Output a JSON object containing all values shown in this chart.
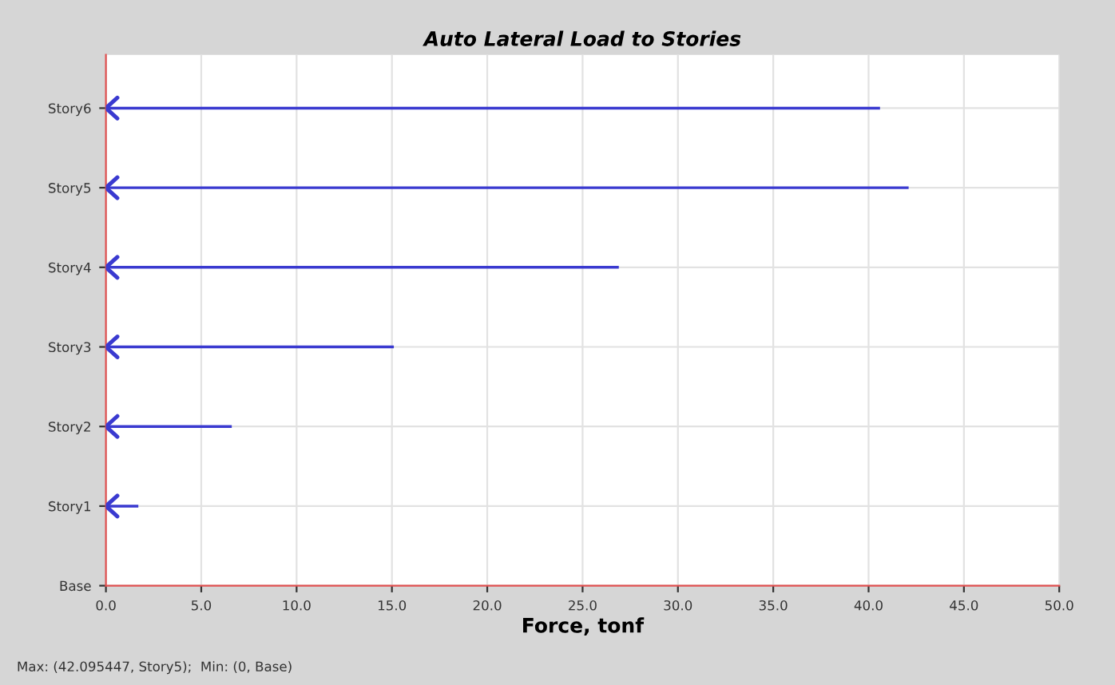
{
  "chart_data": {
    "type": "bar",
    "orientation": "horizontal",
    "title": "Auto Lateral Load to Stories",
    "xlabel": "Force, tonf",
    "categories": [
      "Story6",
      "Story5",
      "Story4",
      "Story3",
      "Story2",
      "Story1",
      "Base"
    ],
    "values": [
      40.6,
      42.1,
      26.9,
      15.1,
      6.6,
      1.7,
      0
    ],
    "color": "#3a3ad0",
    "xlim": [
      0,
      50
    ],
    "xticks": [
      {
        "value": 0,
        "label": "0.0"
      },
      {
        "value": 5,
        "label": "5.0"
      },
      {
        "value": 10,
        "label": "10.0"
      },
      {
        "value": 15,
        "label": "15.0"
      },
      {
        "value": 20,
        "label": "20.0"
      },
      {
        "value": 25,
        "label": "25.0"
      },
      {
        "value": 30,
        "label": "30.0"
      },
      {
        "value": 35,
        "label": "35.0"
      },
      {
        "value": 40,
        "label": "40.0"
      },
      {
        "value": 45,
        "label": "45.0"
      },
      {
        "value": 50,
        "label": "50.0"
      }
    ],
    "grid": true,
    "annotations": [
      "Max: (42.095447, Story5);  Min: (0, Base)"
    ]
  }
}
